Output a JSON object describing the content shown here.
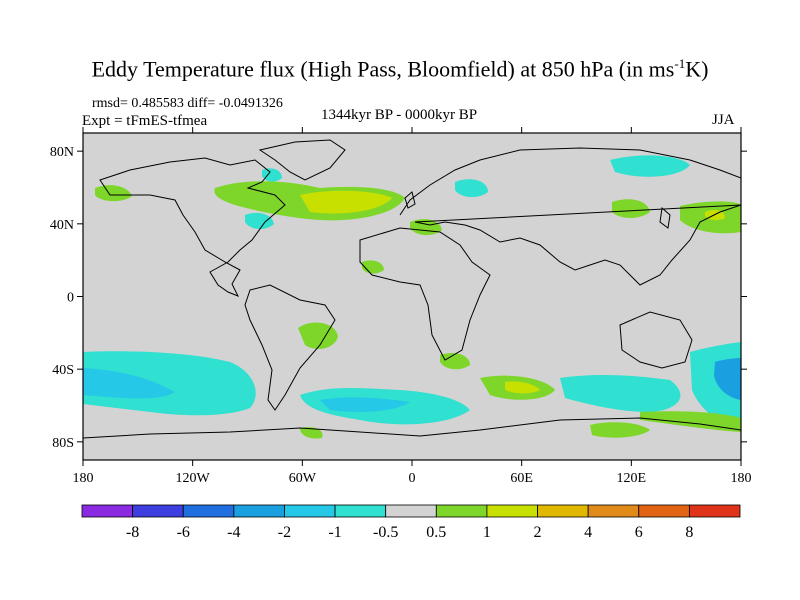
{
  "title_main": "Eddy Temperature flux (High Pass, Bloomfield) at 850 hPa (in ms",
  "title_sup": "-1",
  "title_end": "K)",
  "stats": "rmsd= 0.485583 diff= -0.0491326",
  "expt": "Expt = tFmES-tfmea",
  "period": "1344kyr BP - 0000kyr BP",
  "season": "JJA",
  "lat_ticks": [
    {
      "label": "80N",
      "lat": 80
    },
    {
      "label": "40N",
      "lat": 40
    },
    {
      "label": "0",
      "lat": 0
    },
    {
      "label": "40S",
      "lat": -40
    },
    {
      "label": "80S",
      "lat": -80
    }
  ],
  "lon_ticks": [
    {
      "label": "180",
      "lon": -180
    },
    {
      "label": "120W",
      "lon": -120
    },
    {
      "label": "60W",
      "lon": -60
    },
    {
      "label": "0",
      "lon": 0
    },
    {
      "label": "60E",
      "lon": 60
    },
    {
      "label": "120E",
      "lon": 120
    },
    {
      "label": "180",
      "lon": 180
    }
  ],
  "colorbar": {
    "levels": [
      "-8",
      "-6",
      "-4",
      "-2",
      "-1",
      "-0.5",
      "0.5",
      "1",
      "2",
      "4",
      "6",
      "8"
    ],
    "colors": [
      "#8a2be2",
      "#3d3de0",
      "#1f6fe0",
      "#1aa0e0",
      "#25c8e6",
      "#30e0d0",
      "#d3d3d3",
      "#7ed62a",
      "#c8e000",
      "#e0b800",
      "#e08a1a",
      "#e06414",
      "#e0341a"
    ]
  },
  "colors": {
    "ocean_bg": "#d3d3d3",
    "cyan": "#30e0d0",
    "teal": "#25c8e6",
    "blue": "#1aa0e0",
    "green": "#7ed62a",
    "yellow": "#c8e000"
  }
}
